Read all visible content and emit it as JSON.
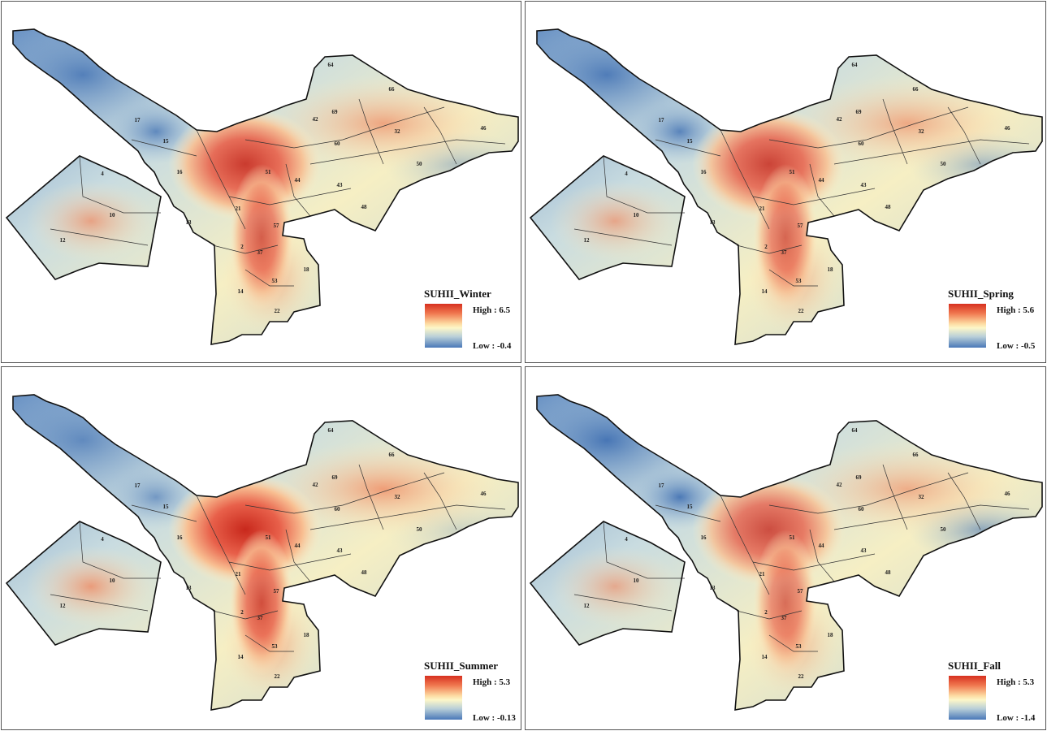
{
  "panels": [
    {
      "id": "winter",
      "title": "SUHII_Winter",
      "high": "High : 6.5",
      "low": "Low : -0.4",
      "hot": 0.9,
      "cool": 0.45
    },
    {
      "id": "spring",
      "title": "SUHII_Spring",
      "high": "High : 5.6",
      "low": "Low : -0.5",
      "hot": 0.85,
      "cool": 0.5
    },
    {
      "id": "summer",
      "title": "SUHII_Summer",
      "high": "High : 5.3",
      "low": "Low : -0.13",
      "hot": 1.0,
      "cool": 0.3
    },
    {
      "id": "fall",
      "title": "SUHII_Fall",
      "high": "High : 5.3",
      "low": "Low : -1.4",
      "hot": 0.8,
      "cool": 0.6
    }
  ],
  "legend_colors": {
    "high": "#d7301f",
    "mid": "#fdf7c8",
    "low": "#4a78b8"
  },
  "district_labels": [
    "64",
    "66",
    "42",
    "69",
    "32",
    "46",
    "17",
    "15",
    "60",
    "50",
    "16",
    "51",
    "44",
    "43",
    "48",
    "4",
    "10",
    "12",
    "13",
    "21",
    "57",
    "2",
    "37",
    "18",
    "53",
    "14",
    "22"
  ]
}
